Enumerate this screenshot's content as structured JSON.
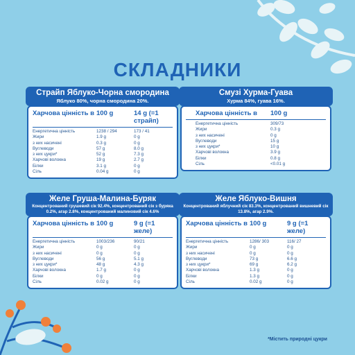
{
  "title": "СКЛАДНИКИ",
  "colors": {
    "background": "#8fcfe8",
    "accent": "#1f63b5",
    "leaf": "#e8f4f7",
    "berry": "#f0803a",
    "stem": "#1f63b5"
  },
  "cards": [
    {
      "name": "Страйп Яблуко-Чорна смородина",
      "sub": "Яблуко 80%, чорна смородина 20%.",
      "hdr": {
        "label": "Харчова цінність в",
        "c2": "100 g",
        "c3": "14 g (=1 страйп)"
      },
      "rows": [
        {
          "label": "Енергетична цінність",
          "v100": "1238 / 294",
          "vp": "173 / 41"
        },
        {
          "label": "Жири",
          "v100": "1.9 g",
          "vp": "0 g"
        },
        {
          "label": "з них насичені",
          "v100": "0.3 g",
          "vp": "0 g"
        },
        {
          "label": "Вуглеводи",
          "v100": "57 g",
          "vp": "8.0 g"
        },
        {
          "label": "з них цукри*",
          "v100": "52 g",
          "vp": "7.3 g"
        },
        {
          "label": "Харчові волокна",
          "v100": "19 g",
          "vp": "2.7 g"
        },
        {
          "label": "Білки",
          "v100": "3.1 g",
          "vp": "0 g"
        },
        {
          "label": "Сіль",
          "v100": "0.04 g",
          "vp": "0 g"
        }
      ]
    },
    {
      "name": "Смузі Хурма-Гуава",
      "sub": "Хурма 84%, гуава 16%.",
      "hdr": {
        "label": "Харчова цінність в",
        "c2": "100 g",
        "c3": ""
      },
      "rows": [
        {
          "label": "Енергетична цінність",
          "v100": "309/73",
          "vp": ""
        },
        {
          "label": "Жири",
          "v100": "0.3 g",
          "vp": ""
        },
        {
          "label": "з них насичені",
          "v100": "0 g",
          "vp": ""
        },
        {
          "label": "Вуглеводи",
          "v100": "15 g",
          "vp": ""
        },
        {
          "label": "з них цукри*",
          "v100": "10 g",
          "vp": ""
        },
        {
          "label": "Харчові волокна",
          "v100": "3.9 g",
          "vp": ""
        },
        {
          "label": "Білки",
          "v100": "0.8 g",
          "vp": ""
        },
        {
          "label": "Сіль",
          "v100": "<0.01 g",
          "vp": ""
        }
      ]
    },
    {
      "name": "Желе Груша-Малина-Буряк",
      "sub": "Концентрований грушевий сік 92.4%, концентрований сік з буряка 0.2%, агар 2.8%, концентрований малиновий сік 4.6%",
      "hdr": {
        "label": "Харчова цінність в",
        "c2": "100 g",
        "c3": "9 g (=1 желе)"
      },
      "rows": [
        {
          "label": "Енергетична цінність",
          "v100": "1003/236",
          "vp": "90/21"
        },
        {
          "label": "Жири",
          "v100": "0 g",
          "vp": "0 g"
        },
        {
          "label": "з них насичені",
          "v100": "0 g",
          "vp": "0 g"
        },
        {
          "label": "Вуглеводи",
          "v100": "56 g",
          "vp": "5.1 g"
        },
        {
          "label": "з них цукри*",
          "v100": "48 g",
          "vp": "4.3 g"
        },
        {
          "label": "Харчові волокна",
          "v100": "1.7 g",
          "vp": "0 g"
        },
        {
          "label": "Білки",
          "v100": "0 g",
          "vp": "0 g"
        },
        {
          "label": "Сіль",
          "v100": "0.02 g",
          "vp": "0 g"
        }
      ]
    },
    {
      "name": "Желе Яблуко-Вишня",
      "sub": "Концентрований яблучний сік 83.3%, концентрований вишневий сік 13.8%, агар 2.9%.",
      "hdr": {
        "label": "Харчова цінність в",
        "c2": "100 g",
        "c3": "9 g (=1 желе)"
      },
      "rows": [
        {
          "label": "Енергетична цінність",
          "v100": "1286/ 303",
          "vp": "116/ 27"
        },
        {
          "label": "Жири",
          "v100": "0 g",
          "vp": "0 g"
        },
        {
          "label": "з них насичені",
          "v100": "0 g",
          "vp": "0 g"
        },
        {
          "label": "Вуглеводи",
          "v100": "73 g",
          "vp": "6.6 g"
        },
        {
          "label": "з них цукри*",
          "v100": "69 g",
          "vp": "6.2 g"
        },
        {
          "label": "Харчові волокна",
          "v100": "1.3 g",
          "vp": "0 g"
        },
        {
          "label": "Білки",
          "v100": "1.3 g",
          "vp": "0 g"
        },
        {
          "label": "Сіль",
          "v100": "0.02 g",
          "vp": "0 g"
        }
      ]
    }
  ],
  "footnote": "*Містить природні цукри"
}
